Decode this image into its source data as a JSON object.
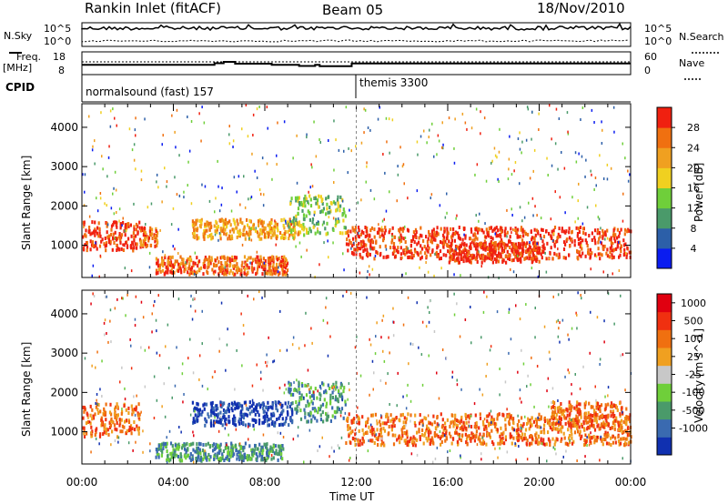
{
  "header": {
    "station": "Rankin Inlet (fitACF)",
    "beam": "Beam 05",
    "date": "18/Nov/2010"
  },
  "labels": {
    "nsky": "N.Sky",
    "nsearch": "N.Search",
    "freq_line1": "Freq.",
    "freq_line2": "[MHz]",
    "nave": "Nave",
    "cpid": "CPID",
    "ylabel": "Slant Range [km]",
    "xlabel": "Time UT"
  },
  "cpid_segments": [
    {
      "label": "normalsound (fast) 157",
      "start_hour": 0
    },
    {
      "label": "themis 3300",
      "start_hour": 12
    }
  ],
  "chart_data": [
    {
      "type": "line",
      "panel": "noise",
      "series": [
        {
          "name": "N.Sky"
        },
        {
          "name": "N.Search"
        }
      ],
      "left_ticks": [
        "10^5",
        "10^0"
      ],
      "right_ticks": [
        "10^5",
        "10^0"
      ]
    },
    {
      "type": "line",
      "panel": "frequency / nave",
      "series": [
        {
          "name": "Freq."
        },
        {
          "name": "Nave"
        }
      ],
      "left_ticks": [
        "18",
        "8"
      ],
      "right_ticks": [
        "60",
        "0"
      ],
      "freq_steps": [
        {
          "t": 0,
          "v": 12.3
        },
        {
          "t": 5.8,
          "v": 13.0
        },
        {
          "t": 6.2,
          "v": 13.6
        },
        {
          "t": 6.7,
          "v": 12.8
        },
        {
          "t": 8.3,
          "v": 12.3
        },
        {
          "t": 9.5,
          "v": 11.8
        },
        {
          "t": 10.2,
          "v": 12.3
        },
        {
          "t": 10.4,
          "v": 11.7
        },
        {
          "t": 11.8,
          "v": 12.9
        },
        {
          "t": 24,
          "v": 12.9
        }
      ]
    },
    {
      "type": "heatmap",
      "panel": "power",
      "ylabel": "Slant Range [km]",
      "xlabel": "Time UT",
      "x_ticks": [
        "00:00",
        "04:00",
        "08:00",
        "12:00",
        "16:00",
        "20:00",
        "00:00"
      ],
      "y_ticks": [
        1000,
        2000,
        3000,
        4000
      ],
      "ylim": [
        180,
        4600
      ],
      "colorbar": {
        "label": "Power [dB]",
        "ticks": [
          "4",
          "8",
          "12",
          "16",
          "20",
          "24",
          "28"
        ],
        "colors": [
          "#0a1cf0",
          "#2c5fa8",
          "#4a9a6a",
          "#6fcf3a",
          "#f0d020",
          "#f0a020",
          "#f07010",
          "#f02010"
        ]
      },
      "bands": [
        {
          "t0": 0,
          "t1": 2.5,
          "r0": 900,
          "r1": 1650,
          "level": 7
        },
        {
          "t0": 2.3,
          "t1": 3.3,
          "r0": 1000,
          "r1": 1500,
          "level": 6
        },
        {
          "t0": 4.8,
          "t1": 9.5,
          "r0": 1200,
          "r1": 1700,
          "level": 5
        },
        {
          "t0": 3.2,
          "t1": 9.0,
          "r0": 300,
          "r1": 750,
          "level": 6
        },
        {
          "t0": 9.0,
          "t1": 11.5,
          "r0": 1300,
          "r1": 2300,
          "level": 3
        },
        {
          "t0": 11.5,
          "t1": 24,
          "r0": 700,
          "r1": 1500,
          "level": 7
        },
        {
          "t0": 16.0,
          "t1": 20.0,
          "r0": 600,
          "r1": 1100,
          "level": 7
        }
      ]
    },
    {
      "type": "heatmap",
      "panel": "velocity",
      "ylabel": "Slant Range [km]",
      "xlabel": "Time UT",
      "x_ticks": [
        "00:00",
        "04:00",
        "08:00",
        "12:00",
        "16:00",
        "20:00",
        "00:00"
      ],
      "y_ticks": [
        1000,
        2000,
        3000,
        4000
      ],
      "ylim": [
        180,
        4600
      ],
      "colorbar": {
        "label": "Velocity [m s^-1]",
        "ticks": [
          "1000",
          "500",
          "100",
          "25",
          "-25",
          "-100",
          "-500",
          "-1000"
        ],
        "colors": [
          "#1030b0",
          "#3a6ab0",
          "#4a9a6a",
          "#6fcf3a",
          "#c8c8c8",
          "#f0a020",
          "#f07010",
          "#f03010",
          "#e00010"
        ]
      },
      "bands": [
        {
          "t0": 0,
          "t1": 2.5,
          "r0": 900,
          "r1": 1750,
          "level": 6
        },
        {
          "t0": 4.8,
          "t1": 9.2,
          "r0": 1200,
          "r1": 1800,
          "level": 0
        },
        {
          "t0": 3.2,
          "t1": 8.8,
          "r0": 300,
          "r1": 750,
          "level": 2
        },
        {
          "t0": 9.0,
          "t1": 11.5,
          "r0": 1300,
          "r1": 2300,
          "level": 2
        },
        {
          "t0": 11.5,
          "t1": 24,
          "r0": 700,
          "r1": 1500,
          "level": 6
        },
        {
          "t0": 20.5,
          "t1": 23.8,
          "r0": 1100,
          "r1": 1800,
          "level": 6
        }
      ]
    }
  ]
}
